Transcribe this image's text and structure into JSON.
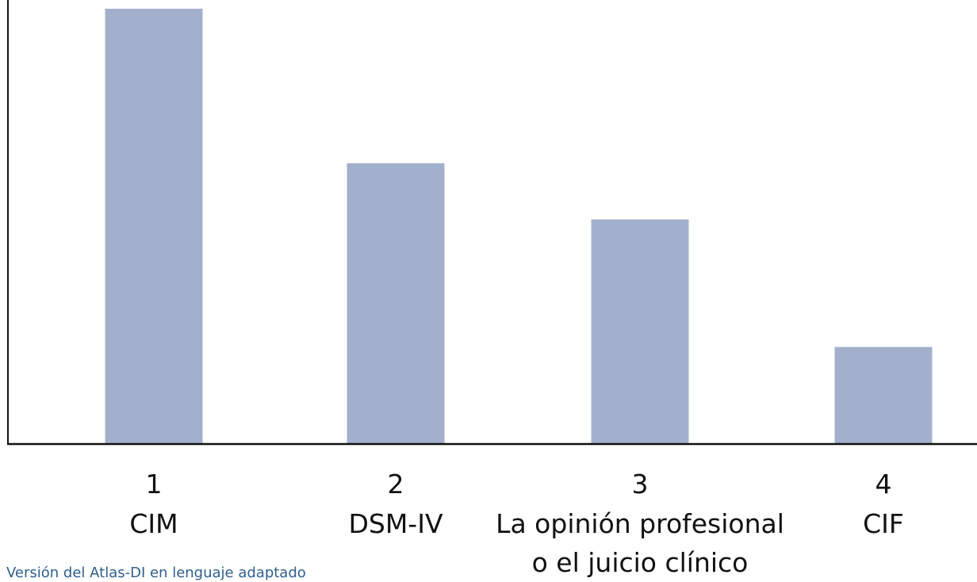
{
  "chart_data": {
    "type": "bar",
    "categories": [
      {
        "number": "1",
        "lines": [
          "CIM"
        ]
      },
      {
        "number": "2",
        "lines": [
          "DSM-IV"
        ]
      },
      {
        "number": "3",
        "lines": [
          "La opinión profesional",
          "o el juicio clínico"
        ]
      },
      {
        "number": "4",
        "lines": [
          "CIF"
        ]
      }
    ],
    "values": [
      100,
      64.5,
      51.6,
      22.3
    ],
    "ylim": [
      0,
      100
    ],
    "grid": false,
    "bar_color": "#a3b0cc",
    "axis_color": "#111111"
  },
  "footer": {
    "text": "Versión del Atlas-DI en lenguaje adaptado"
  }
}
